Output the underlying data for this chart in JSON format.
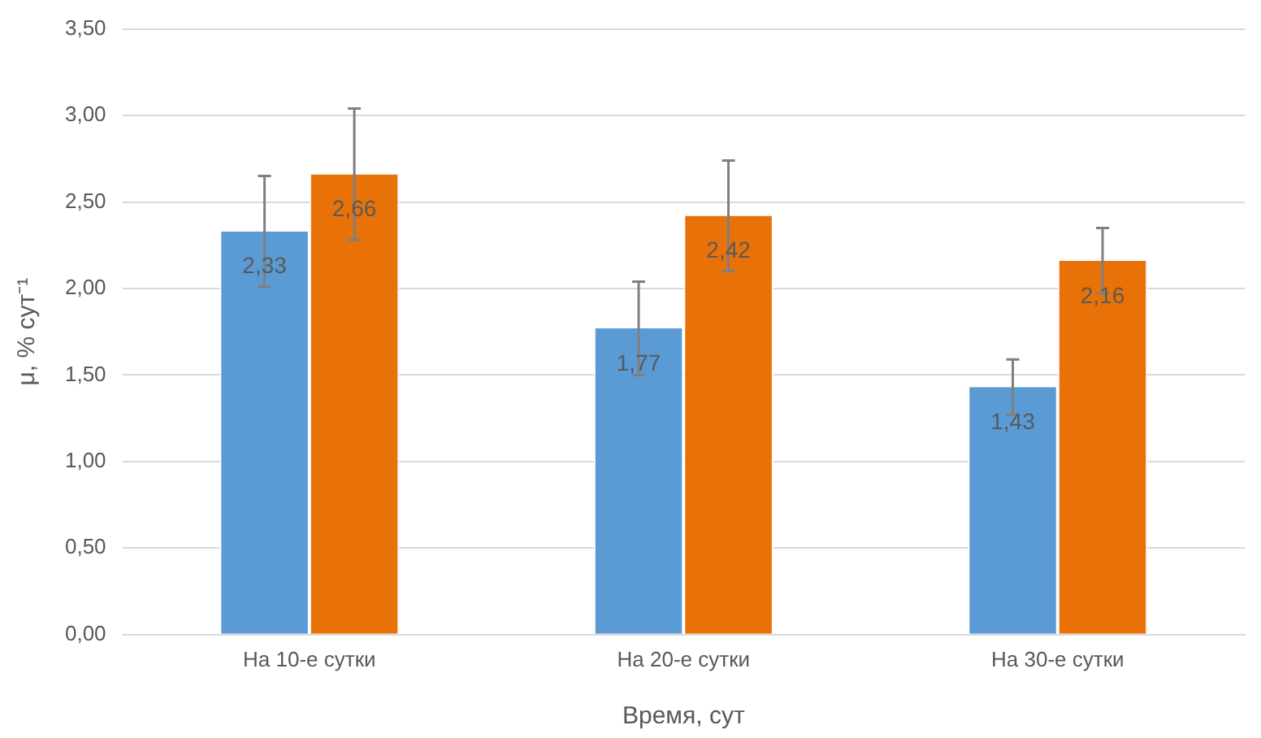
{
  "chart_data": {
    "type": "bar",
    "xlabel": "Время, сут",
    "ylabel": "μ, % сут⁻¹",
    "categories": [
      "На 10-е сутки",
      "На 20-е сутки",
      "На 30-е сутки"
    ],
    "series": [
      {
        "color": "#5b9bd5",
        "values": [
          2.33,
          1.77,
          1.43
        ],
        "errors": [
          0.32,
          0.27,
          0.16
        ],
        "value_labels": [
          "2,33",
          "1,77",
          "1,43"
        ]
      },
      {
        "color": "#e97208",
        "values": [
          2.66,
          2.42,
          2.16
        ],
        "errors": [
          0.38,
          0.32,
          0.19
        ],
        "value_labels": [
          "2,66",
          "2,42",
          "2,16"
        ]
      }
    ],
    "ylim": [
      0,
      3.5
    ],
    "yticks": [
      {
        "value": 0,
        "label": "0,00"
      },
      {
        "value": 0.5,
        "label": "0,50"
      },
      {
        "value": 1,
        "label": "1,00"
      },
      {
        "value": 1.5,
        "label": "1,50"
      },
      {
        "value": 2,
        "label": "2,00"
      },
      {
        "value": 2.5,
        "label": "2,50"
      },
      {
        "value": 3,
        "label": "3,00"
      },
      {
        "value": 3.5,
        "label": "3,50"
      }
    ],
    "grid": "y",
    "legend": false
  }
}
